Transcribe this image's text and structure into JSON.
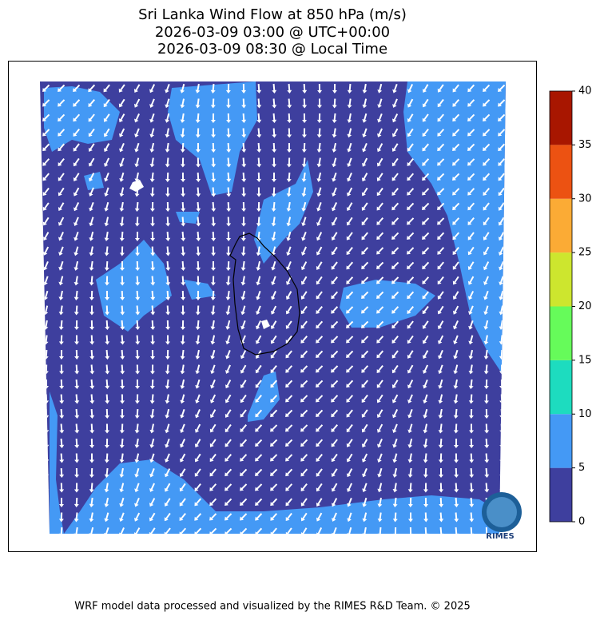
{
  "title": [
    "Sri Lanka Wind Flow at 850 hPa (m/s)",
    "2026-03-09 03:00 @ UTC+00:00",
    "2026-03-09 08:30 @ Local Time"
  ],
  "colorbar": {
    "lim": [
      0,
      40
    ],
    "ticks": [
      0,
      5,
      10,
      15,
      20,
      25,
      30,
      35,
      40
    ],
    "colors": [
      "#3e3f9e",
      "#4499f5",
      "#1ddcbf",
      "#66fb5a",
      "#cde62e",
      "#fbab35",
      "#ec5212",
      "#a81600"
    ]
  },
  "logo": "RIMES",
  "footer": "WRF model data processed and visualized by the RIMES R&D Team. © 2025"
}
